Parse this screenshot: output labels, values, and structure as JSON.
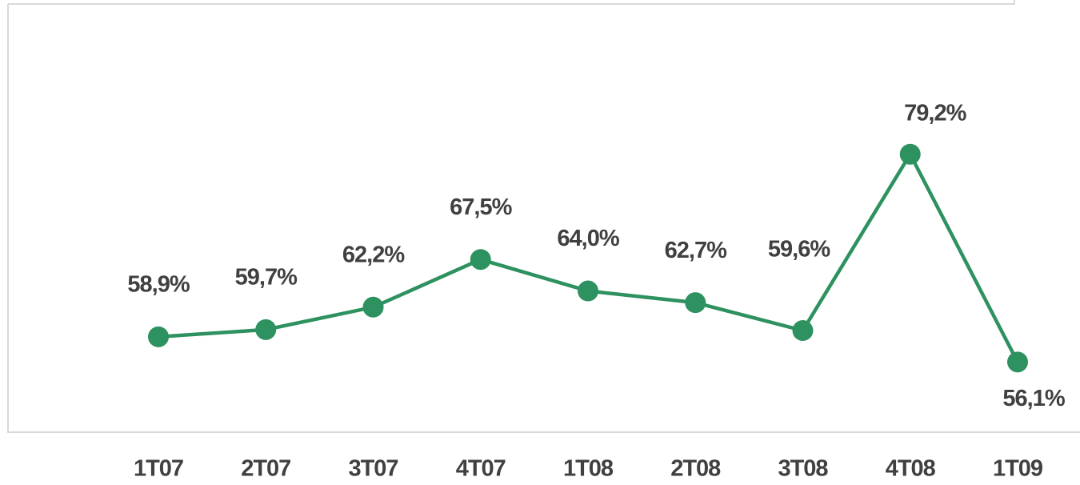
{
  "chart_data": {
    "type": "line",
    "categories": [
      "1T07",
      "2T07",
      "3T07",
      "4T07",
      "1T08",
      "2T08",
      "3T08",
      "4T08",
      "1T09"
    ],
    "series": [
      {
        "name": null,
        "color": "#2e9160",
        "values": [
          58.9,
          59.7,
          62.2,
          67.5,
          64.0,
          62.7,
          59.6,
          79.2,
          56.1
        ],
        "value_labels": [
          "58,9%",
          "59,7%",
          "62,2%",
          "67,5%",
          "64,0%",
          "62,7%",
          "59,6%",
          "79,2%",
          "56,1%"
        ]
      }
    ],
    "ylim": [
      48.3,
      95.9
    ]
  }
}
